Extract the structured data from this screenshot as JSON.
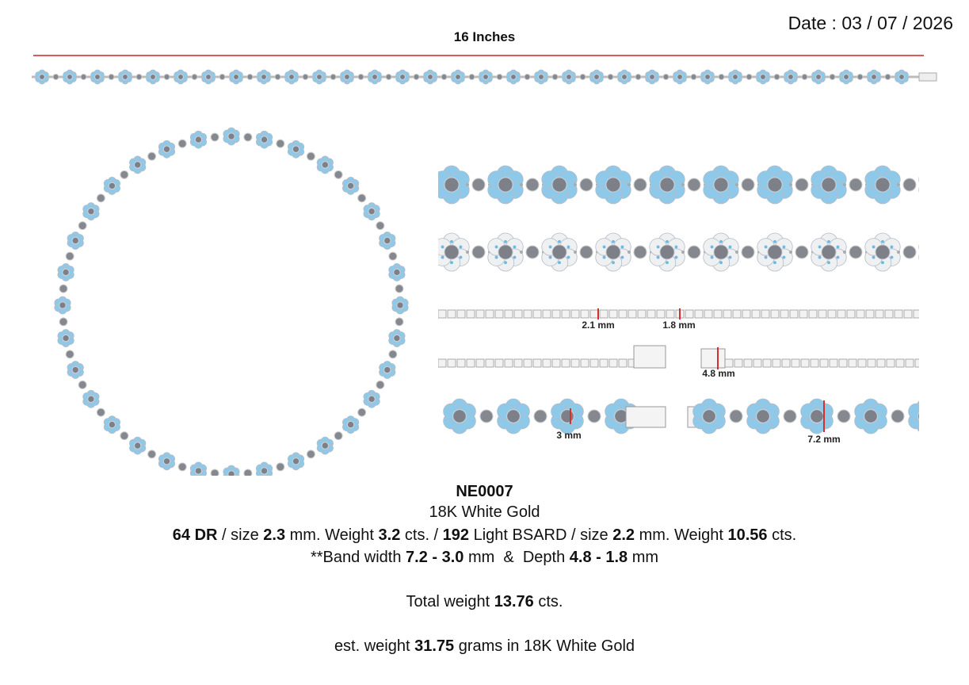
{
  "header": {
    "date": "Date : 03 / 07 / 2026",
    "length": "16 Inches"
  },
  "measurements": [
    "2.1 mm",
    "1.8 mm",
    "4.8 mm",
    "3 mm",
    "7.2 mm"
  ],
  "spec": {
    "code": "NE0007",
    "metal": "18K White Gold",
    "lines": [
      [
        {
          "text": "64 DR",
          "bold": true
        },
        {
          "text": " / size ",
          "bold": false
        },
        {
          "text": "2.3",
          "bold": true
        },
        {
          "text": " mm. Weight ",
          "bold": false
        },
        {
          "text": "3.2",
          "bold": true
        },
        {
          "text": " cts. / ",
          "bold": false
        },
        {
          "text": "192",
          "bold": true
        },
        {
          "text": " Light BSARD / size ",
          "bold": false
        },
        {
          "text": "2.2",
          "bold": true
        },
        {
          "text": " mm. Weight ",
          "bold": false
        },
        {
          "text": "10.56",
          "bold": true
        },
        {
          "text": " cts.",
          "bold": false
        }
      ],
      [
        {
          "text": "**Band width ",
          "bold": false
        },
        {
          "text": "7.2 - 3.0",
          "bold": true
        },
        {
          "text": " mm  &  Depth ",
          "bold": false
        },
        {
          "text": "4.8 - 1.8",
          "bold": true
        },
        {
          "text": " mm",
          "bold": false
        }
      ],
      [
        {
          "text": "Total weight ",
          "bold": false
        },
        {
          "text": "13.76",
          "bold": true
        },
        {
          "text": " cts.",
          "bold": false
        }
      ],
      [
        {
          "text": "est. weight ",
          "bold": false
        },
        {
          "text": "31.75",
          "bold": true
        },
        {
          "text": " grams in ",
          "bold": false
        },
        {
          "text": "18K White Gold",
          "bold": false
        }
      ]
    ]
  }
}
